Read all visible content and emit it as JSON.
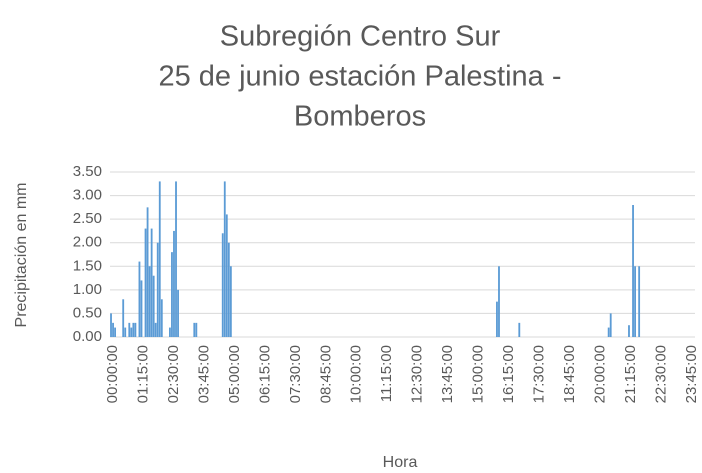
{
  "chart_data": {
    "type": "bar",
    "title": [
      "Subregión Centro Sur",
      "25 de junio estación Palestina -",
      "Bomberos"
    ],
    "y_label": "Precipitación en mm",
    "x_label": "Hora",
    "color": "#5b9bd5",
    "grid": true,
    "ylim": [
      0,
      3.5
    ],
    "yticks": [
      {
        "value": 0,
        "label": "0.00"
      },
      {
        "value": 0.5,
        "label": "0.50"
      },
      {
        "value": 1,
        "label": "1.00"
      },
      {
        "value": 1.5,
        "label": "1.50"
      },
      {
        "value": 2,
        "label": "2.00"
      },
      {
        "value": 2.5,
        "label": "2.50"
      },
      {
        "value": 3,
        "label": "3.00"
      },
      {
        "value": 3.5,
        "label": "3.50"
      }
    ],
    "categories": [
      "00:00:00",
      null,
      null,
      null,
      null,
      null,
      null,
      null,
      null,
      null,
      null,
      null,
      null,
      null,
      null,
      "01:15:00",
      null,
      null,
      null,
      null,
      null,
      null,
      null,
      null,
      null,
      null,
      null,
      null,
      null,
      null,
      "02:30:00",
      null,
      null,
      null,
      null,
      null,
      null,
      null,
      null,
      null,
      null,
      null,
      null,
      null,
      null,
      "03:45:00",
      null,
      null,
      null,
      null,
      null,
      null,
      null,
      null,
      null,
      null,
      null,
      null,
      null,
      null,
      "05:00:00",
      null,
      null,
      null,
      null,
      null,
      null,
      null,
      null,
      null,
      null,
      null,
      null,
      null,
      null,
      "06:15:00",
      null,
      null,
      null,
      null,
      null,
      null,
      null,
      null,
      null,
      null,
      null,
      null,
      null,
      null,
      "07:30:00",
      null,
      null,
      null,
      null,
      null,
      null,
      null,
      null,
      null,
      null,
      null,
      null,
      null,
      null,
      "08:45:00",
      null,
      null,
      null,
      null,
      null,
      null,
      null,
      null,
      null,
      null,
      null,
      null,
      null,
      null,
      "10:00:00",
      null,
      null,
      null,
      null,
      null,
      null,
      null,
      null,
      null,
      null,
      null,
      null,
      null,
      null,
      "11:15:00",
      null,
      null,
      null,
      null,
      null,
      null,
      null,
      null,
      null,
      null,
      null,
      null,
      null,
      null,
      "12:30:00",
      null,
      null,
      null,
      null,
      null,
      null,
      null,
      null,
      null,
      null,
      null,
      null,
      null,
      null,
      "13:45:00",
      null,
      null,
      null,
      null,
      null,
      null,
      null,
      null,
      null,
      null,
      null,
      null,
      null,
      null,
      "15:00:00",
      null,
      null,
      null,
      null,
      null,
      null,
      null,
      null,
      null,
      null,
      null,
      null,
      null,
      null,
      "16:15:00",
      null,
      null,
      null,
      null,
      null,
      null,
      null,
      null,
      null,
      null,
      null,
      null,
      null,
      null,
      "17:30:00",
      null,
      null,
      null,
      null,
      null,
      null,
      null,
      null,
      null,
      null,
      null,
      null,
      null,
      null,
      "18:45:00",
      null,
      null,
      null,
      null,
      null,
      null,
      null,
      null,
      null,
      null,
      null,
      null,
      null,
      null,
      "20:00:00",
      null,
      null,
      null,
      null,
      null,
      null,
      null,
      null,
      null,
      null,
      null,
      null,
      null,
      null,
      "21:15:00",
      null,
      null,
      null,
      null,
      null,
      null,
      null,
      null,
      null,
      null,
      null,
      null,
      null,
      null,
      "22:30:00",
      null,
      null,
      null,
      null,
      null,
      null,
      null,
      null,
      null,
      null,
      null,
      null,
      null,
      null,
      "23:45:00",
      null,
      null
    ],
    "values": [
      0.5,
      0.3,
      0.2,
      0,
      0,
      0,
      0.8,
      0.2,
      0,
      0.3,
      0.2,
      0.3,
      0.3,
      0,
      1.6,
      1.2,
      0,
      2.3,
      2.75,
      1.5,
      2.3,
      1.3,
      0.3,
      2.0,
      3.3,
      0.8,
      0,
      0,
      0,
      0.2,
      1.8,
      2.25,
      3.3,
      1.0,
      0,
      0,
      0,
      0,
      0,
      0,
      0,
      0.3,
      0.3,
      0,
      0,
      0,
      0,
      0,
      0,
      0,
      0,
      0,
      0,
      0,
      0,
      2.2,
      3.3,
      2.6,
      2.0,
      1.5,
      0,
      0,
      0,
      0,
      0,
      0,
      0,
      0,
      0,
      0,
      0,
      0,
      0,
      0,
      0,
      0,
      0,
      0,
      0,
      0,
      0,
      0,
      0,
      0,
      0,
      0,
      0,
      0,
      0,
      0,
      0,
      0,
      0,
      0,
      0,
      0,
      0,
      0,
      0,
      0,
      0,
      0,
      0,
      0,
      0,
      0,
      0,
      0,
      0,
      0,
      0,
      0,
      0,
      0,
      0,
      0,
      0,
      0,
      0,
      0,
      0,
      0,
      0,
      0,
      0,
      0,
      0,
      0,
      0,
      0,
      0,
      0,
      0,
      0,
      0,
      0,
      0,
      0,
      0,
      0,
      0,
      0,
      0,
      0,
      0,
      0,
      0,
      0,
      0,
      0,
      0,
      0,
      0,
      0,
      0,
      0,
      0,
      0,
      0,
      0,
      0,
      0,
      0,
      0,
      0,
      0,
      0,
      0,
      0,
      0,
      0,
      0,
      0,
      0,
      0,
      0,
      0,
      0,
      0,
      0,
      0,
      0,
      0,
      0,
      0,
      0,
      0,
      0,
      0,
      0,
      0.75,
      1.5,
      0,
      0,
      0,
      0,
      0,
      0,
      0,
      0,
      0,
      0.3,
      0,
      0,
      0,
      0,
      0,
      0,
      0,
      0,
      0,
      0,
      0,
      0,
      0,
      0,
      0,
      0,
      0,
      0,
      0,
      0,
      0,
      0,
      0,
      0,
      0,
      0,
      0,
      0,
      0,
      0,
      0,
      0,
      0,
      0,
      0,
      0,
      0,
      0,
      0,
      0,
      0,
      0,
      0,
      0.2,
      0.5,
      0,
      0,
      0,
      0,
      0,
      0,
      0,
      0,
      0.25,
      0,
      2.8,
      1.5,
      0,
      1.5,
      0,
      0,
      0,
      0,
      0,
      0,
      0,
      0,
      0,
      0,
      0,
      0,
      0,
      0,
      0,
      0,
      0,
      0,
      0,
      0,
      0,
      0,
      0,
      0,
      0,
      0,
      0
    ]
  }
}
